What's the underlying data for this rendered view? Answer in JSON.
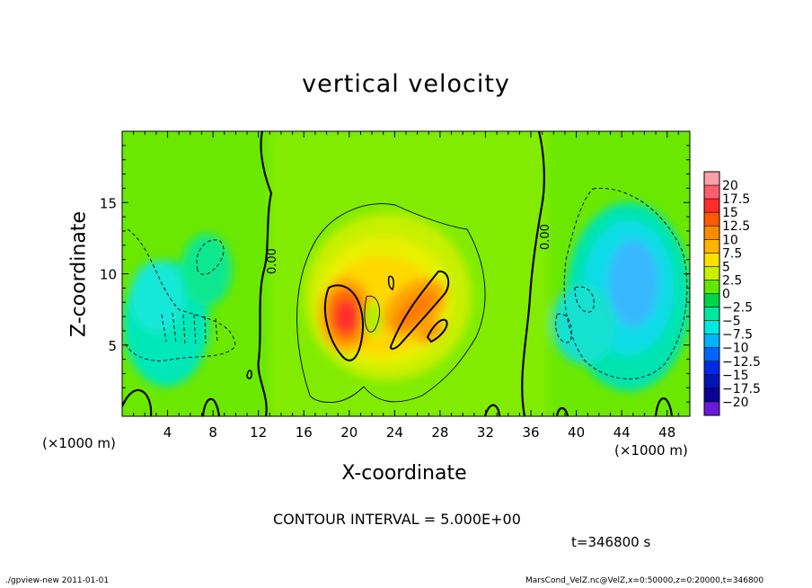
{
  "chart_data": {
    "type": "heatmap",
    "title": "vertical velocity",
    "xlabel": "X-coordinate",
    "ylabel": "Z-coordinate",
    "x_unit_label": "(×1000 m)",
    "xlim": [
      0,
      50
    ],
    "ylim": [
      0,
      20
    ],
    "x_ticks": [
      4,
      8,
      12,
      16,
      20,
      24,
      28,
      32,
      36,
      40,
      44,
      48
    ],
    "y_ticks": [
      5,
      10,
      15
    ],
    "colorbar": {
      "levels": [
        "20",
        "17.5",
        "15",
        "12.5",
        "10",
        "7.5",
        "5",
        "2.5",
        "0",
        "−2.5",
        "−5",
        "−7.5",
        "−10",
        "−12.5",
        "−15",
        "−17.5",
        "−20"
      ],
      "colors": [
        "#ff9fa8",
        "#ff5f6a",
        "#ff2c2c",
        "#ff5a00",
        "#ff8a00",
        "#ffb400",
        "#ffe000",
        "#c8f000",
        "#5fe800",
        "#00d24a",
        "#00e8a0",
        "#00e8e0",
        "#00b4ff",
        "#0064ff",
        "#0028e6",
        "#0014b4",
        "#0a0096",
        "#6a1ad8"
      ]
    },
    "contour_labels": [
      "0.00",
      "0.00"
    ],
    "features": [
      {
        "name": "updraft-max-left",
        "x": 19.5,
        "z": 7.5,
        "w": 13
      },
      {
        "name": "updraft-right-band",
        "x": 25.5,
        "z": 7.8,
        "w": 10
      },
      {
        "name": "downdraft-left",
        "x": 4,
        "z": 6.5,
        "w": -5.5
      },
      {
        "name": "downdraft-right",
        "x": 45.5,
        "z": 8.5,
        "w": -8
      }
    ]
  },
  "contour_interval": "CONTOUR INTERVAL = 5.000E+00",
  "time_label": "t=346800  s",
  "footer_left": "./gpview-new   2011-01-01",
  "footer_right": "MarsCond_VelZ.nc@VelZ,x=0:50000,z=0:20000,t=346800"
}
